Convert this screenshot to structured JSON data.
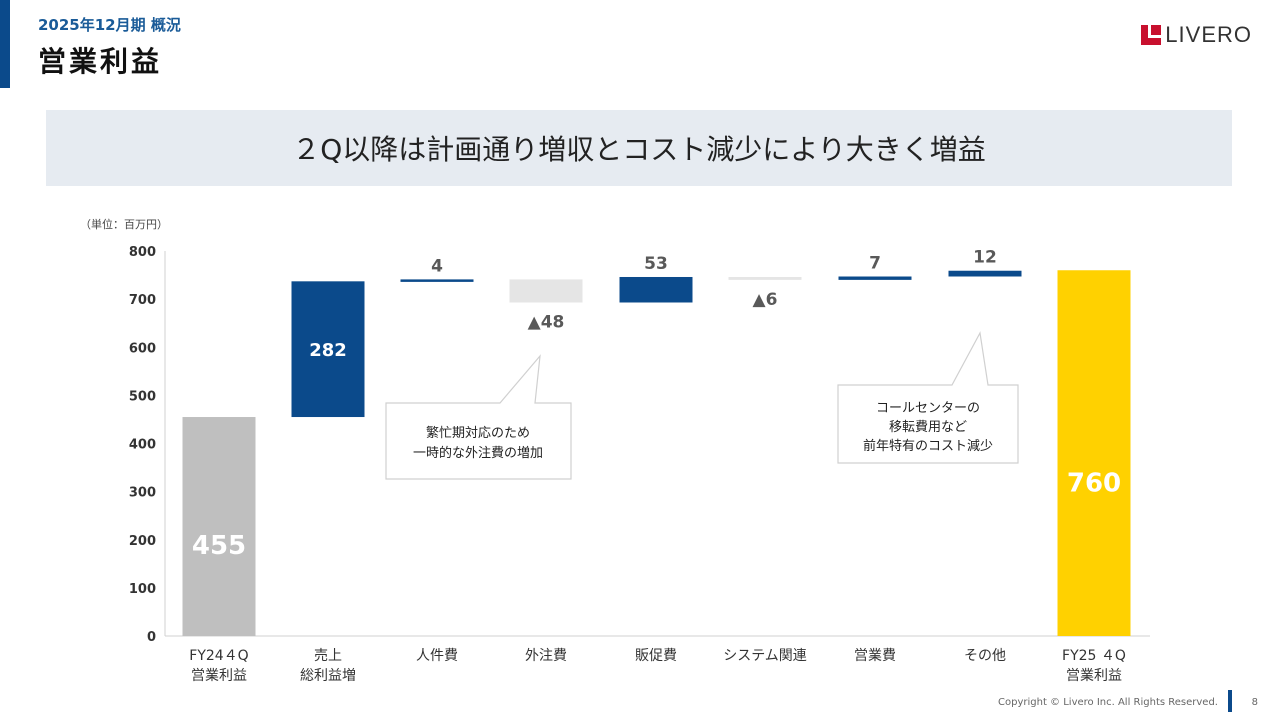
{
  "header": {
    "subtitle": "2025年12月期 概況",
    "title": "営業利益",
    "logo_text": "LIVERO"
  },
  "headline": "２Q以降は計画通り増収とコスト減少により大きく増益",
  "unit_label": "（単位：百万円）",
  "callouts": [
    {
      "lines": [
        "繁忙期対応のため",
        "一時的な外注費の増加"
      ]
    },
    {
      "lines": [
        "コールセンターの",
        "移転費用など",
        "前年特有のコスト減少"
      ]
    }
  ],
  "chart_data": {
    "type": "waterfall",
    "ylim": [
      0,
      800
    ],
    "yticks": [
      0,
      100,
      200,
      300,
      400,
      500,
      600,
      700,
      800
    ],
    "grid": false,
    "steps": [
      {
        "label": [
          "FY24４Q",
          "営業利益"
        ],
        "kind": "total",
        "base": 0,
        "top": 455,
        "value_label": "455",
        "color": "#bfbfbf"
      },
      {
        "label": [
          "売上",
          "総利益増"
        ],
        "kind": "increase",
        "base": 455,
        "top": 737,
        "value_label": "282",
        "color": "#0b4a8b"
      },
      {
        "label": [
          "人件費"
        ],
        "kind": "increase",
        "base": 737,
        "top": 741,
        "value_label": "4",
        "color": "#0b4a8b"
      },
      {
        "label": [
          "外注費"
        ],
        "kind": "decrease",
        "base": 693,
        "top": 741,
        "value_label": "▲48",
        "color": "#e5e5e5"
      },
      {
        "label": [
          "販促費"
        ],
        "kind": "increase",
        "base": 693,
        "top": 746,
        "value_label": "53",
        "color": "#0b4a8b"
      },
      {
        "label": [
          "システム関連"
        ],
        "kind": "decrease",
        "base": 740,
        "top": 746,
        "value_label": "▲6",
        "color": "#e5e5e5"
      },
      {
        "label": [
          "営業費"
        ],
        "kind": "increase",
        "base": 740,
        "top": 747,
        "value_label": "7",
        "color": "#0b4a8b"
      },
      {
        "label": [
          "その他"
        ],
        "kind": "increase",
        "base": 747,
        "top": 759,
        "value_label": "12",
        "color": "#0b4a8b"
      },
      {
        "label": [
          "FY25 ４Q",
          "営業利益"
        ],
        "kind": "total",
        "base": 0,
        "top": 760,
        "value_label": "760",
        "color": "#ffd100"
      }
    ]
  },
  "footer": {
    "copyright": "Copyright © Livero Inc. All Rights Reserved.",
    "page": "8"
  }
}
